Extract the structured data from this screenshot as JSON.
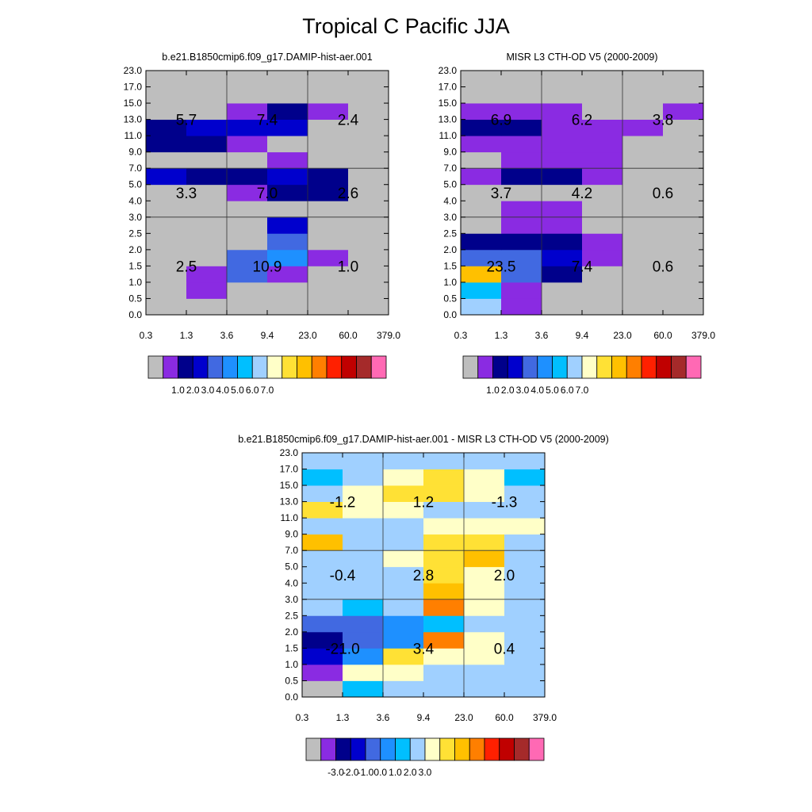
{
  "figure": {
    "title": "Tropical C Pacific JJA"
  },
  "palettes": {
    "main": [
      "#bebebe",
      "#8a2be2",
      "#00008b",
      "#0000cd",
      "#4169e1",
      "#1e90ff",
      "#00bfff",
      "#a0d0ff",
      "#ffffc8",
      "#ffe135",
      "#ffc000",
      "#ff7f00",
      "#ff2000",
      "#c00000",
      "#a52a2a",
      "#ff69b4"
    ],
    "main_labels": [
      "1.0",
      "2.0",
      "3.0",
      "4.0",
      "5.0",
      "6.0",
      "7.0"
    ],
    "diff_labels": [
      "-3.0",
      "-2.0",
      "-1.0",
      "0.0",
      "1.0",
      "2.0",
      "3.0"
    ]
  },
  "chart_data": [
    {
      "type": "heatmap",
      "title": "b.e21.B1850cmip6.f09_g17.DAMIP-hist-aer.001",
      "x_ticks": [
        "0.3",
        "1.3",
        "3.6",
        "9.4",
        "23.0",
        "60.0",
        "379.0"
      ],
      "y_ticks": [
        "0.0",
        "0.5",
        "1.0",
        "1.5",
        "2.0",
        "2.5",
        "3.0",
        "4.0",
        "5.0",
        "7.0",
        "9.0",
        "11.0",
        "13.0",
        "15.0",
        "17.0",
        "23.0"
      ],
      "colorbar_labels": [
        "1.0",
        "2.0",
        "3.0",
        "4.0",
        "5.0",
        "6.0",
        "7.0"
      ],
      "grid_rows_bottom_to_top": [
        [
          0,
          0,
          0,
          0,
          0,
          0
        ],
        [
          0,
          1,
          0,
          0,
          0,
          0
        ],
        [
          0,
          1,
          4,
          1,
          0,
          0
        ],
        [
          0,
          0,
          4,
          5,
          1,
          0
        ],
        [
          0,
          0,
          0,
          4,
          0,
          0
        ],
        [
          0,
          0,
          0,
          3,
          0,
          0
        ],
        [
          0,
          0,
          0,
          0,
          0,
          0
        ],
        [
          0,
          0,
          1,
          2,
          2,
          0
        ],
        [
          3,
          2,
          2,
          3,
          2,
          0
        ],
        [
          0,
          0,
          0,
          1,
          0,
          0
        ],
        [
          2,
          2,
          1,
          0,
          0,
          0
        ],
        [
          2,
          3,
          3,
          3,
          0,
          0
        ],
        [
          0,
          0,
          1,
          2,
          1,
          0
        ],
        [
          0,
          0,
          0,
          0,
          0,
          0
        ],
        [
          0,
          0,
          0,
          0,
          0,
          0
        ]
      ],
      "block_values": [
        {
          "row": "low",
          "col": "thin",
          "value": "2.5"
        },
        {
          "row": "low",
          "col": "medium",
          "value": "10.9"
        },
        {
          "row": "low",
          "col": "thick",
          "value": "1.0"
        },
        {
          "row": "mid",
          "col": "thin",
          "value": "3.3"
        },
        {
          "row": "mid",
          "col": "medium",
          "value": "7.0"
        },
        {
          "row": "mid",
          "col": "thick",
          "value": "2.6"
        },
        {
          "row": "high",
          "col": "thin",
          "value": "5.7"
        },
        {
          "row": "high",
          "col": "medium",
          "value": "7.4"
        },
        {
          "row": "high",
          "col": "thick",
          "value": "2.4"
        }
      ]
    },
    {
      "type": "heatmap",
      "title": "MISR L3 CTH-OD V5 (2000-2009)",
      "x_ticks": [
        "0.3",
        "1.3",
        "3.6",
        "9.4",
        "23.0",
        "60.0",
        "379.0"
      ],
      "y_ticks": [
        "0.0",
        "0.5",
        "1.0",
        "1.5",
        "2.0",
        "2.5",
        "3.0",
        "4.0",
        "5.0",
        "7.0",
        "9.0",
        "11.0",
        "13.0",
        "15.0",
        "17.0",
        "23.0"
      ],
      "colorbar_labels": [
        "1.0",
        "2.0",
        "3.0",
        "4.0",
        "5.0",
        "6.0",
        "7.0"
      ],
      "grid_rows_bottom_to_top": [
        [
          7,
          1,
          0,
          0,
          0,
          0
        ],
        [
          6,
          1,
          0,
          0,
          0,
          0
        ],
        [
          10,
          4,
          2,
          0,
          0,
          0
        ],
        [
          4,
          4,
          3,
          1,
          0,
          0
        ],
        [
          2,
          2,
          2,
          1,
          0,
          0
        ],
        [
          0,
          1,
          1,
          0,
          0,
          0
        ],
        [
          0,
          1,
          1,
          0,
          0,
          0
        ],
        [
          0,
          0,
          0,
          0,
          0,
          0
        ],
        [
          1,
          2,
          2,
          1,
          0,
          0
        ],
        [
          0,
          1,
          1,
          1,
          0,
          0
        ],
        [
          1,
          1,
          1,
          1,
          0,
          0
        ],
        [
          2,
          2,
          1,
          1,
          1,
          0
        ],
        [
          1,
          1,
          1,
          0,
          0,
          1
        ],
        [
          0,
          0,
          0,
          0,
          0,
          0
        ],
        [
          0,
          0,
          0,
          0,
          0,
          0
        ]
      ],
      "block_values": [
        {
          "row": "low",
          "col": "thin",
          "value": "23.5"
        },
        {
          "row": "low",
          "col": "medium",
          "value": "7.4"
        },
        {
          "row": "low",
          "col": "thick",
          "value": "0.6"
        },
        {
          "row": "mid",
          "col": "thin",
          "value": "3.7"
        },
        {
          "row": "mid",
          "col": "medium",
          "value": "4.2"
        },
        {
          "row": "mid",
          "col": "thick",
          "value": "0.6"
        },
        {
          "row": "high",
          "col": "thin",
          "value": "6.9"
        },
        {
          "row": "high",
          "col": "medium",
          "value": "6.2"
        },
        {
          "row": "high",
          "col": "thick",
          "value": "3.8"
        }
      ]
    },
    {
      "type": "heatmap",
      "title": "b.e21.B1850cmip6.f09_g17.DAMIP-hist-aer.001 - MISR L3 CTH-OD V5 (2000-2009)",
      "x_ticks": [
        "0.3",
        "1.3",
        "3.6",
        "9.4",
        "23.0",
        "60.0",
        "379.0"
      ],
      "y_ticks": [
        "0.0",
        "0.5",
        "1.0",
        "1.5",
        "2.0",
        "2.5",
        "3.0",
        "4.0",
        "5.0",
        "7.0",
        "9.0",
        "11.0",
        "13.0",
        "15.0",
        "17.0",
        "23.0"
      ],
      "colorbar_labels": [
        "-3.0",
        "-2.0",
        "-1.0",
        "0.0",
        "1.0",
        "2.0",
        "3.0"
      ],
      "grid_rows_bottom_to_top": [
        [
          0,
          6,
          7,
          7,
          7,
          7
        ],
        [
          1,
          8,
          8,
          7,
          7,
          7
        ],
        [
          3,
          5,
          9,
          8,
          8,
          7
        ],
        [
          2,
          4,
          5,
          11,
          8,
          7
        ],
        [
          4,
          4,
          5,
          6,
          7,
          7
        ],
        [
          7,
          6,
          7,
          11,
          8,
          7
        ],
        [
          7,
          7,
          7,
          10,
          8,
          7
        ],
        [
          7,
          7,
          7,
          9,
          8,
          7
        ],
        [
          7,
          7,
          8,
          9,
          10,
          7
        ],
        [
          10,
          7,
          7,
          9,
          9,
          7
        ],
        [
          7,
          7,
          7,
          8,
          8,
          8
        ],
        [
          9,
          8,
          8,
          7,
          7,
          7
        ],
        [
          7,
          8,
          9,
          9,
          8,
          7
        ],
        [
          6,
          7,
          8,
          9,
          8,
          6
        ],
        [
          7,
          7,
          7,
          7,
          7,
          7
        ]
      ],
      "block_values": [
        {
          "row": "low",
          "col": "thin",
          "value": "-21.0"
        },
        {
          "row": "low",
          "col": "medium",
          "value": "3.4"
        },
        {
          "row": "low",
          "col": "thick",
          "value": "0.4"
        },
        {
          "row": "mid",
          "col": "thin",
          "value": "-0.4"
        },
        {
          "row": "mid",
          "col": "medium",
          "value": "2.8"
        },
        {
          "row": "mid",
          "col": "thick",
          "value": "2.0"
        },
        {
          "row": "high",
          "col": "thin",
          "value": "-1.2"
        },
        {
          "row": "high",
          "col": "medium",
          "value": "1.2"
        },
        {
          "row": "high",
          "col": "thick",
          "value": "-1.3"
        }
      ]
    }
  ]
}
